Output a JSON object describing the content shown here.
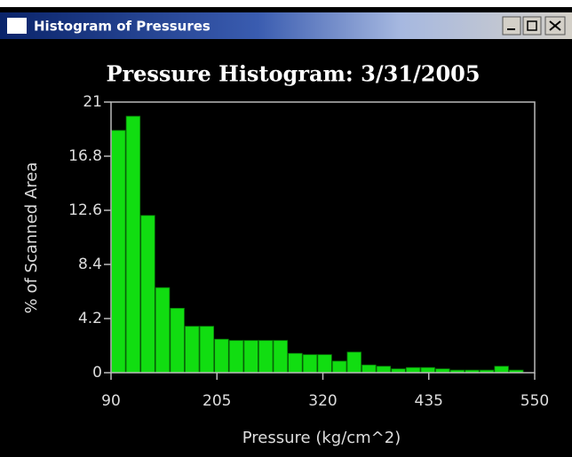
{
  "window": {
    "title": "Histogram of Pressures"
  },
  "chart_data": {
    "type": "histogram",
    "title": "Pressure Histogram: 3/31/2005",
    "x_label": "Pressure (kg/cm^2)",
    "y_label": "% of Scanned Area",
    "bins": [
      90,
      106,
      122,
      138,
      154,
      170,
      186,
      202,
      218,
      234,
      250,
      266,
      282,
      298,
      314,
      330,
      346,
      362,
      378,
      394,
      410,
      426,
      442,
      458,
      474,
      490,
      506,
      522,
      538
    ],
    "values": [
      18.8,
      19.9,
      12.2,
      6.6,
      5.0,
      3.6,
      3.6,
      2.6,
      2.5,
      2.5,
      2.5,
      2.5,
      1.5,
      1.4,
      1.4,
      0.9,
      1.6,
      0.6,
      0.5,
      0.3,
      0.4,
      0.4,
      0.3,
      0.2,
      0.2,
      0.2,
      0.5,
      0.2
    ],
    "color": "#11dd11",
    "xlim": [
      90,
      550
    ],
    "xticks": [
      90,
      205,
      320,
      435,
      550
    ],
    "ylim": [
      0,
      21
    ],
    "yticks": [
      0,
      4.2,
      8.4,
      12.6,
      16.8,
      21
    ]
  }
}
